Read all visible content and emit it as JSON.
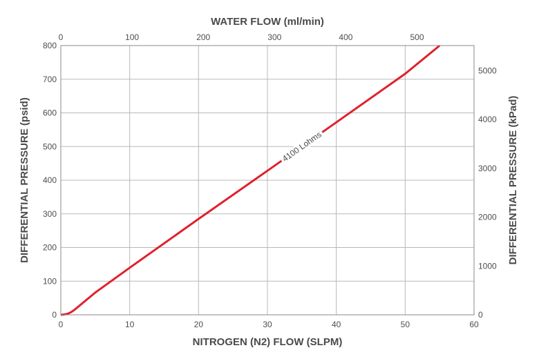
{
  "chart_data": {
    "type": "line",
    "xlabel": "NITROGEN (N2) FLOW (SLPM)",
    "x2label": "WATER FLOW (ml/min)",
    "ylabel": "DIFFERENTIAL PRESSURE (psid)",
    "y2label": "DIFFERENTIAL PRESSURE (kPad)",
    "xlim": [
      0,
      60
    ],
    "ylim": [
      0,
      800
    ],
    "x2lim": [
      0,
      580
    ],
    "y2lim": [
      0,
      5516
    ],
    "x_ticks": [
      "0",
      "10",
      "20",
      "30",
      "40",
      "50",
      "60"
    ],
    "y_ticks": [
      "0",
      "100",
      "200",
      "300",
      "400",
      "500",
      "600",
      "700",
      "800"
    ],
    "x2_ticks": [
      "0",
      "100",
      "200",
      "300",
      "400",
      "500"
    ],
    "y2_ticks": [
      "0",
      "1000",
      "2000",
      "3000",
      "4000",
      "5000"
    ],
    "grid": true,
    "series": [
      {
        "name": "4100 Lohms",
        "color": "#e0202e",
        "x": [
          0,
          0.5,
          1,
          1.5,
          2,
          5,
          10,
          20,
          30,
          40,
          50,
          55
        ],
        "y": [
          0,
          1,
          3,
          8,
          15,
          66,
          140,
          285,
          428,
          572,
          716,
          800
        ]
      }
    ],
    "annotation": {
      "text": "4100 Lohms",
      "x": 35,
      "y": 500
    }
  }
}
